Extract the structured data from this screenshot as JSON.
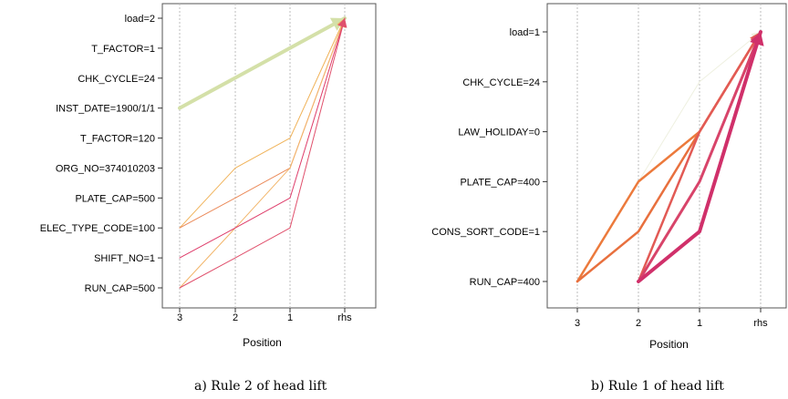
{
  "chart_data": [
    {
      "type": "parallel-coordinates",
      "xlabel": "Position",
      "x_ticks": [
        "3",
        "2",
        "1",
        "rhs"
      ],
      "y_categories": [
        "load=2",
        "T_FACTOR=1",
        "CHK_CYCLE=24",
        "INST_DATE=1900/1/1",
        "T_FACTOR=120",
        "ORG_NO=374010203",
        "PLATE_CAP=500",
        "ELEC_TYPE_CODE=100",
        "SHIFT_NO=1",
        "RUN_CAP=500"
      ],
      "caption": "a) Rule 2 of head lift",
      "series": [
        {
          "points": [
            "INST_DATE=1900/1/1",
            null,
            null,
            "load=2"
          ],
          "color": "#d4e0a8",
          "width": 4
        },
        {
          "points": [
            "ELEC_TYPE_CODE=100",
            "ORG_NO=374010203",
            "T_FACTOR=120",
            "load=2"
          ],
          "color": "#f0b258",
          "width": 1
        },
        {
          "points": [
            "ELEC_TYPE_CODE=100",
            "PLATE_CAP=500",
            "ORG_NO=374010203",
            "load=2"
          ],
          "color": "#eb8a5a",
          "width": 1
        },
        {
          "points": [
            "RUN_CAP=500",
            "ELEC_TYPE_CODE=100",
            "ORG_NO=374010203",
            "load=2"
          ],
          "color": "#f2b56a",
          "width": 1
        },
        {
          "points": [
            "SHIFT_NO=1",
            "ELEC_TYPE_CODE=100",
            "PLATE_CAP=500",
            "load=2"
          ],
          "color": "#de3c6a",
          "width": 1
        },
        {
          "points": [
            "RUN_CAP=500",
            "SHIFT_NO=1",
            "ELEC_TYPE_CODE=100",
            "load=2"
          ],
          "color": "#e0506c",
          "width": 1
        }
      ]
    },
    {
      "type": "parallel-coordinates",
      "xlabel": "Position",
      "x_ticks": [
        "3",
        "2",
        "1",
        "rhs"
      ],
      "y_categories": [
        "load=1",
        "CHK_CYCLE=24",
        "LAW_HOLIDAY=0",
        "PLATE_CAP=400",
        "CONS_SORT_CODE=1",
        "RUN_CAP=400"
      ],
      "caption": "b) Rule 1 of head lift",
      "series": [
        {
          "points": [
            "PLATE_CAP=400",
            "CHK_CYCLE=24",
            "load=1",
            null
          ],
          "offset": 1,
          "color": "#eef0e0",
          "width": 1
        },
        {
          "points": [
            "RUN_CAP=400",
            "PLATE_CAP=400",
            "LAW_HOLIDAY=0",
            "load=1"
          ],
          "color": "#ec7a3c",
          "width": 2.5
        },
        {
          "points": [
            "RUN_CAP=400",
            "CONS_SORT_CODE=1",
            "LAW_HOLIDAY=0",
            "load=1"
          ],
          "color": "#e8703e",
          "width": 2.5
        },
        {
          "points": [
            "RUN_CAP=400",
            "LAW_HOLIDAY=0",
            "load=1"
          ],
          "offset": 1,
          "color": "#e25a55",
          "width": 2.5
        },
        {
          "points": [
            "RUN_CAP=400",
            "PLATE_CAP=400",
            "load=1"
          ],
          "offset": 1,
          "color": "#d8446a",
          "width": 3
        },
        {
          "points": [
            "RUN_CAP=400",
            "CONS_SORT_CODE=1",
            "load=1"
          ],
          "offset": 1,
          "color": "#d0306a",
          "width": 4
        }
      ]
    }
  ]
}
